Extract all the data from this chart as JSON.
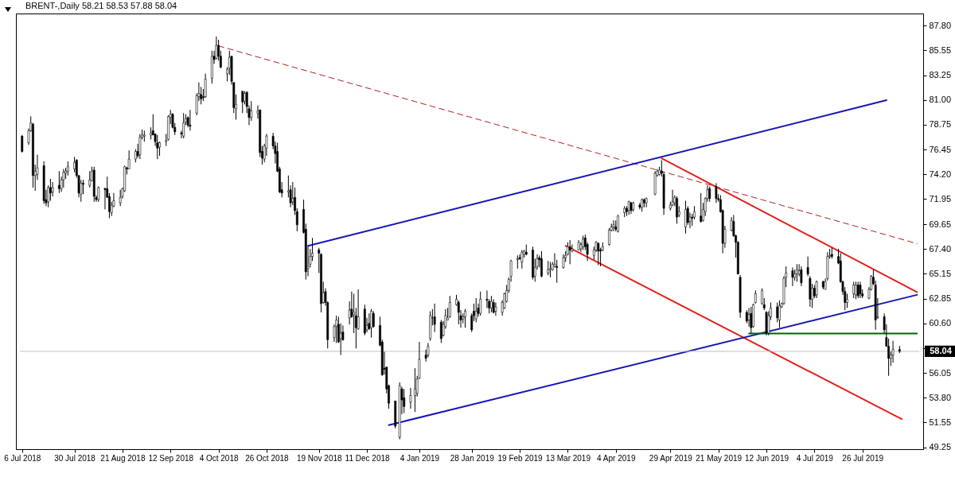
{
  "chart_data": {
    "type": "candlestick",
    "title": "BRENT-,Daily  58.21 58.53 57.88 58.04",
    "x": [
      "2018-07-06",
      "2018-07-09",
      "2018-07-10",
      "2018-07-11",
      "2018-07-12",
      "2018-07-13",
      "2018-07-16",
      "2018-07-17",
      "2018-07-18",
      "2018-07-19",
      "2018-07-20",
      "2018-07-23",
      "2018-07-24",
      "2018-07-25",
      "2018-07-26",
      "2018-07-27",
      "2018-07-30",
      "2018-07-31",
      "2018-08-01",
      "2018-08-02",
      "2018-08-03",
      "2018-08-06",
      "2018-08-07",
      "2018-08-08",
      "2018-08-09",
      "2018-08-10",
      "2018-08-13",
      "2018-08-14",
      "2018-08-15",
      "2018-08-16",
      "2018-08-17",
      "2018-08-20",
      "2018-08-21",
      "2018-08-22",
      "2018-08-23",
      "2018-08-24",
      "2018-08-27",
      "2018-08-28",
      "2018-08-29",
      "2018-08-30",
      "2018-08-31",
      "2018-09-03",
      "2018-09-04",
      "2018-09-05",
      "2018-09-06",
      "2018-09-07",
      "2018-09-10",
      "2018-09-11",
      "2018-09-12",
      "2018-09-13",
      "2018-09-14",
      "2018-09-17",
      "2018-09-18",
      "2018-09-19",
      "2018-09-20",
      "2018-09-21",
      "2018-09-24",
      "2018-09-25",
      "2018-09-26",
      "2018-09-27",
      "2018-09-28",
      "2018-10-01",
      "2018-10-02",
      "2018-10-03",
      "2018-10-04",
      "2018-10-05",
      "2018-10-08",
      "2018-10-09",
      "2018-10-10",
      "2018-10-11",
      "2018-10-12",
      "2018-10-15",
      "2018-10-16",
      "2018-10-17",
      "2018-10-18",
      "2018-10-19",
      "2018-10-22",
      "2018-10-23",
      "2018-10-24",
      "2018-10-25",
      "2018-10-26",
      "2018-10-29",
      "2018-10-30",
      "2018-10-31",
      "2018-11-01",
      "2018-11-02",
      "2018-11-05",
      "2018-11-06",
      "2018-11-07",
      "2018-11-08",
      "2018-11-09",
      "2018-11-12",
      "2018-11-13",
      "2018-11-14",
      "2018-11-15",
      "2018-11-16",
      "2018-11-19",
      "2018-11-20",
      "2018-11-21",
      "2018-11-22",
      "2018-11-23",
      "2018-11-26",
      "2018-11-27",
      "2018-11-28",
      "2018-11-29",
      "2018-11-30",
      "2018-12-03",
      "2018-12-04",
      "2018-12-05",
      "2018-12-06",
      "2018-12-07",
      "2018-12-10",
      "2018-12-11",
      "2018-12-12",
      "2018-12-13",
      "2018-12-14",
      "2018-12-17",
      "2018-12-18",
      "2018-12-19",
      "2018-12-20",
      "2018-12-21",
      "2018-12-24",
      "2018-12-26",
      "2018-12-27",
      "2018-12-28",
      "2018-12-31",
      "2019-01-02",
      "2019-01-03",
      "2019-01-04",
      "2019-01-07",
      "2019-01-08",
      "2019-01-09",
      "2019-01-10",
      "2019-01-11",
      "2019-01-14",
      "2019-01-15",
      "2019-01-16",
      "2019-01-17",
      "2019-01-18",
      "2019-01-21",
      "2019-01-22",
      "2019-01-23",
      "2019-01-24",
      "2019-01-25",
      "2019-01-28",
      "2019-01-29",
      "2019-01-30",
      "2019-01-31",
      "2019-02-01",
      "2019-02-04",
      "2019-02-05",
      "2019-02-06",
      "2019-02-07",
      "2019-02-08",
      "2019-02-11",
      "2019-02-12",
      "2019-02-13",
      "2019-02-14",
      "2019-02-15",
      "2019-02-18",
      "2019-02-19",
      "2019-02-20",
      "2019-02-21",
      "2019-02-22",
      "2019-02-25",
      "2019-02-26",
      "2019-02-27",
      "2019-02-28",
      "2019-03-01",
      "2019-03-04",
      "2019-03-05",
      "2019-03-06",
      "2019-03-07",
      "2019-03-08",
      "2019-03-11",
      "2019-03-12",
      "2019-03-13",
      "2019-03-14",
      "2019-03-15",
      "2019-03-18",
      "2019-03-19",
      "2019-03-20",
      "2019-03-21",
      "2019-03-22",
      "2019-03-25",
      "2019-03-26",
      "2019-03-27",
      "2019-03-28",
      "2019-03-29",
      "2019-04-01",
      "2019-04-02",
      "2019-04-03",
      "2019-04-04",
      "2019-04-05",
      "2019-04-08",
      "2019-04-09",
      "2019-04-10",
      "2019-04-11",
      "2019-04-12",
      "2019-04-15",
      "2019-04-16",
      "2019-04-17",
      "2019-04-18",
      "2019-04-22",
      "2019-04-23",
      "2019-04-24",
      "2019-04-25",
      "2019-04-26",
      "2019-04-29",
      "2019-04-30",
      "2019-05-01",
      "2019-05-02",
      "2019-05-03",
      "2019-05-06",
      "2019-05-07",
      "2019-05-08",
      "2019-05-09",
      "2019-05-10",
      "2019-05-13",
      "2019-05-14",
      "2019-05-15",
      "2019-05-16",
      "2019-05-17",
      "2019-05-20",
      "2019-05-21",
      "2019-05-22",
      "2019-05-23",
      "2019-05-24",
      "2019-05-27",
      "2019-05-28",
      "2019-05-29",
      "2019-05-30",
      "2019-05-31",
      "2019-06-03",
      "2019-06-04",
      "2019-06-05",
      "2019-06-06",
      "2019-06-07",
      "2019-06-10",
      "2019-06-11",
      "2019-06-12",
      "2019-06-13",
      "2019-06-14",
      "2019-06-17",
      "2019-06-18",
      "2019-06-19",
      "2019-06-20",
      "2019-06-21",
      "2019-06-24",
      "2019-06-25",
      "2019-06-26",
      "2019-06-27",
      "2019-06-28",
      "2019-07-01",
      "2019-07-02",
      "2019-07-03",
      "2019-07-04",
      "2019-07-05",
      "2019-07-08",
      "2019-07-09",
      "2019-07-10",
      "2019-07-11",
      "2019-07-12",
      "2019-07-15",
      "2019-07-16",
      "2019-07-17",
      "2019-07-18",
      "2019-07-19",
      "2019-07-22",
      "2019-07-23",
      "2019-07-24",
      "2019-07-25",
      "2019-07-26",
      "2019-07-29",
      "2019-07-30",
      "2019-07-31",
      "2019-08-01",
      "2019-08-02",
      "2019-08-05",
      "2019-08-06",
      "2019-08-07",
      "2019-08-08",
      "2019-08-09",
      "2019-08-12"
    ],
    "ohlc": [
      [
        77.7,
        77.8,
        76.2,
        76.3
      ],
      [
        77.1,
        78.4,
        76.9,
        78.2
      ],
      [
        78.2,
        79.5,
        78.1,
        78.9
      ],
      [
        78.8,
        78.9,
        73.0,
        74.1
      ],
      [
        74.1,
        75.1,
        72.7,
        74.5
      ],
      [
        74.2,
        76.0,
        73.7,
        74.8
      ],
      [
        75.0,
        75.4,
        71.5,
        71.8
      ],
      [
        71.9,
        72.8,
        71.3,
        71.6
      ],
      [
        71.7,
        73.2,
        71.2,
        73.0
      ],
      [
        73.0,
        73.8,
        71.8,
        72.5
      ],
      [
        72.6,
        73.5,
        72.2,
        73.0
      ],
      [
        73.2,
        74.5,
        72.5,
        72.9
      ],
      [
        72.9,
        74.0,
        72.6,
        73.7
      ],
      [
        73.7,
        74.7,
        73.0,
        74.4
      ],
      [
        74.3,
        74.8,
        73.8,
        74.5
      ],
      [
        74.5,
        75.4,
        74.1,
        74.9
      ],
      [
        74.7,
        75.8,
        74.4,
        75.3
      ],
      [
        75.5,
        75.6,
        73.9,
        74.1
      ],
      [
        74.1,
        74.1,
        72.1,
        72.5
      ],
      [
        72.4,
        73.7,
        71.7,
        73.4
      ],
      [
        73.4,
        73.7,
        72.4,
        73.3
      ],
      [
        73.2,
        74.5,
        73.0,
        73.7
      ],
      [
        73.6,
        74.9,
        73.6,
        74.5
      ],
      [
        74.6,
        74.9,
        71.7,
        72.2
      ],
      [
        72.1,
        72.3,
        71.7,
        71.9
      ],
      [
        71.9,
        73.1,
        71.7,
        73.0
      ],
      [
        72.9,
        73.0,
        71.0,
        72.8
      ],
      [
        72.9,
        74.0,
        72.1,
        72.1
      ],
      [
        72.2,
        72.5,
        70.2,
        70.8
      ],
      [
        70.7,
        71.7,
        70.4,
        71.4
      ],
      [
        71.3,
        72.5,
        71.2,
        71.8
      ],
      [
        71.6,
        72.8,
        71.3,
        72.1
      ],
      [
        72.2,
        73.0,
        72.0,
        72.9
      ],
      [
        72.7,
        75.0,
        72.6,
        74.9
      ],
      [
        74.8,
        74.9,
        74.2,
        74.7
      ],
      [
        74.7,
        76.4,
        74.7,
        75.6
      ],
      [
        75.6,
        76.5,
        75.3,
        76.3
      ],
      [
        76.3,
        77.0,
        75.7,
        75.9
      ],
      [
        76.0,
        77.9,
        75.6,
        77.6
      ],
      [
        77.6,
        78.3,
        77.4,
        77.8
      ],
      [
        77.7,
        78.2,
        77.2,
        77.8
      ],
      [
        77.8,
        78.5,
        77.4,
        78.0
      ],
      [
        78.2,
        79.7,
        77.8,
        77.8
      ],
      [
        77.9,
        77.9,
        76.8,
        77.2
      ],
      [
        77.1,
        77.8,
        75.6,
        76.6
      ],
      [
        76.7,
        77.2,
        75.9,
        77.1
      ],
      [
        77.2,
        77.9,
        76.8,
        77.3
      ],
      [
        77.4,
        79.6,
        77.3,
        79.5
      ],
      [
        79.4,
        80.1,
        78.8,
        79.7
      ],
      [
        79.7,
        79.8,
        78.4,
        78.5
      ],
      [
        78.5,
        78.9,
        77.8,
        78.1
      ],
      [
        78.0,
        78.2,
        77.5,
        77.9
      ],
      [
        77.7,
        79.8,
        77.5,
        78.9
      ],
      [
        79.0,
        79.7,
        78.7,
        79.3
      ],
      [
        79.4,
        79.5,
        78.5,
        78.7
      ],
      [
        78.7,
        80.1,
        78.2,
        78.6
      ],
      [
        79.8,
        81.6,
        79.6,
        81.4
      ],
      [
        81.3,
        82.6,
        80.9,
        81.6
      ],
      [
        81.5,
        82.2,
        80.6,
        81.1
      ],
      [
        81.3,
        82.0,
        80.9,
        81.2
      ],
      [
        81.3,
        83.4,
        81.2,
        82.9
      ],
      [
        83.0,
        85.5,
        82.5,
        85.0
      ],
      [
        85.0,
        85.5,
        84.3,
        84.7
      ],
      [
        84.8,
        86.8,
        84.7,
        86.0
      ],
      [
        86.0,
        86.5,
        84.6,
        85.0
      ],
      [
        85.0,
        85.5,
        83.9,
        84.0
      ],
      [
        83.4,
        84.0,
        82.7,
        83.8
      ],
      [
        83.9,
        85.5,
        83.3,
        84.9
      ],
      [
        85.0,
        85.0,
        82.4,
        82.7
      ],
      [
        82.6,
        82.6,
        79.8,
        80.3
      ],
      [
        80.2,
        81.5,
        79.2,
        80.6
      ],
      [
        81.8,
        81.8,
        79.8,
        80.8
      ],
      [
        80.9,
        81.8,
        80.6,
        81.6
      ],
      [
        81.7,
        81.8,
        79.8,
        80.4
      ],
      [
        80.2,
        80.5,
        78.7,
        79.4
      ],
      [
        79.4,
        80.9,
        79.1,
        80.0
      ],
      [
        79.8,
        80.5,
        79.3,
        80.0
      ],
      [
        80.1,
        80.1,
        75.8,
        76.2
      ],
      [
        76.3,
        76.8,
        75.1,
        75.7
      ],
      [
        75.6,
        77.0,
        75.3,
        76.8
      ],
      [
        76.6,
        77.9,
        75.9,
        77.7
      ],
      [
        77.7,
        78.0,
        76.5,
        76.8
      ],
      [
        76.8,
        77.2,
        75.2,
        76.1
      ],
      [
        76.3,
        77.1,
        74.4,
        74.5
      ],
      [
        74.7,
        74.9,
        72.5,
        72.6
      ],
      [
        72.8,
        73.5,
        72.1,
        72.5
      ],
      [
        72.6,
        74.1,
        72.1,
        72.7
      ],
      [
        72.8,
        73.2,
        71.2,
        71.6
      ],
      [
        71.7,
        73.5,
        71.4,
        72.0
      ],
      [
        72.1,
        73.0,
        70.5,
        70.9
      ],
      [
        70.8,
        71.1,
        69.0,
        69.6
      ],
      [
        71.0,
        71.9,
        68.8,
        68.9
      ],
      [
        69.2,
        69.7,
        64.6,
        65.3
      ],
      [
        65.6,
        67.6,
        64.9,
        65.8
      ],
      [
        66.0,
        67.4,
        65.7,
        66.7
      ],
      [
        66.7,
        68.4,
        66.3,
        67.0
      ],
      [
        67.3,
        67.5,
        65.2,
        67.0
      ],
      [
        66.9,
        67.0,
        61.6,
        62.4
      ],
      [
        62.5,
        64.4,
        62.4,
        63.4
      ],
      [
        63.5,
        63.8,
        62.2,
        62.5
      ],
      [
        62.5,
        62.6,
        58.3,
        59.1
      ],
      [
        59.3,
        60.5,
        58.9,
        60.3
      ],
      [
        60.3,
        61.3,
        58.8,
        60.9
      ],
      [
        60.5,
        61.2,
        58.8,
        58.9
      ],
      [
        59.2,
        60.6,
        57.7,
        59.7
      ],
      [
        59.8,
        60.4,
        59.0,
        59.1
      ],
      [
        61.1,
        62.6,
        60.5,
        61.8
      ],
      [
        61.9,
        63.5,
        61.1,
        61.2
      ],
      [
        61.4,
        63.3,
        59.7,
        61.6
      ],
      [
        61.3,
        62.0,
        58.3,
        60.2
      ],
      [
        60.1,
        63.7,
        60.0,
        61.2
      ],
      [
        61.9,
        62.3,
        59.5,
        59.7
      ],
      [
        60.0,
        61.1,
        59.8,
        60.4
      ],
      [
        60.6,
        61.5,
        60.0,
        60.1
      ],
      [
        60.2,
        61.9,
        59.3,
        61.7
      ],
      [
        61.5,
        61.7,
        60.2,
        60.3
      ],
      [
        60.4,
        61.2,
        58.5,
        58.6
      ],
      [
        58.9,
        59.1,
        55.8,
        55.9
      ],
      [
        56.5,
        58.0,
        55.9,
        56.4
      ],
      [
        56.6,
        56.6,
        54.2,
        54.6
      ],
      [
        54.9,
        55.0,
        52.8,
        53.3
      ],
      [
        53.5,
        53.5,
        51.0,
        51.2
      ],
      [
        50.2,
        55.2,
        50.0,
        54.9
      ],
      [
        54.6,
        54.8,
        52.3,
        53.6
      ],
      [
        53.8,
        54.6,
        52.4,
        53.0
      ],
      [
        53.4,
        54.7,
        52.8,
        54.0
      ],
      [
        54.0,
        56.5,
        52.5,
        54.6
      ],
      [
        54.2,
        55.8,
        53.9,
        55.5
      ],
      [
        55.6,
        58.9,
        55.5,
        57.3
      ],
      [
        57.7,
        58.2,
        57.1,
        57.4
      ],
      [
        57.7,
        58.8,
        57.5,
        58.5
      ],
      [
        59.2,
        61.7,
        59.0,
        61.3
      ],
      [
        61.1,
        61.9,
        60.4,
        61.1
      ],
      [
        61.2,
        62.4,
        59.8,
        60.5
      ],
      [
        60.7,
        60.9,
        58.8,
        59.2
      ],
      [
        59.5,
        60.8,
        59.4,
        60.5
      ],
      [
        60.3,
        61.9,
        60.1,
        61.3
      ],
      [
        60.9,
        62.0,
        60.9,
        61.1
      ],
      [
        61.2,
        63.1,
        61.1,
        62.5
      ],
      [
        62.3,
        63.2,
        62.2,
        62.8
      ],
      [
        62.5,
        62.7,
        60.5,
        61.6
      ],
      [
        61.3,
        61.8,
        60.2,
        60.9
      ],
      [
        61.0,
        61.5,
        60.6,
        61.2
      ],
      [
        61.2,
        61.9,
        60.2,
        61.7
      ],
      [
        61.3,
        61.5,
        59.8,
        60.0
      ],
      [
        61.7,
        62.4,
        60.8,
        61.3
      ],
      [
        61.0,
        62.9,
        60.7,
        61.7
      ],
      [
        62.0,
        62.4,
        61.2,
        61.5
      ],
      [
        61.5,
        63.5,
        61.3,
        62.8
      ],
      [
        62.8,
        63.6,
        62.0,
        62.7
      ],
      [
        62.6,
        62.8,
        61.5,
        62.0
      ],
      [
        62.0,
        63.1,
        61.6,
        62.6
      ],
      [
        62.5,
        62.8,
        61.5,
        61.6
      ],
      [
        61.7,
        62.5,
        61.3,
        62.1
      ],
      [
        61.6,
        62.7,
        61.3,
        62.5
      ],
      [
        62.0,
        63.4,
        61.9,
        63.3
      ],
      [
        62.6,
        64.1,
        62.5,
        63.6
      ],
      [
        63.6,
        64.8,
        63.4,
        64.6
      ],
      [
        64.9,
        66.4,
        64.4,
        66.3
      ],
      [
        66.4,
        66.8,
        65.6,
        66.5
      ],
      [
        66.6,
        66.9,
        66.4,
        66.5
      ],
      [
        66.2,
        67.3,
        65.6,
        67.1
      ],
      [
        66.9,
        67.3,
        66.6,
        67.2
      ],
      [
        67.1,
        67.8,
        66.8,
        66.9
      ],
      [
        67.3,
        67.6,
        64.6,
        64.8
      ],
      [
        64.9,
        66.5,
        64.4,
        65.7
      ],
      [
        65.8,
        66.9,
        65.5,
        66.5
      ],
      [
        66.6,
        66.8,
        65.7,
        66.4
      ],
      [
        66.5,
        67.2,
        64.8,
        64.9
      ],
      [
        65.2,
        66.3,
        65.0,
        65.5
      ],
      [
        65.5,
        66.2,
        64.8,
        65.6
      ],
      [
        65.5,
        66.2,
        65.4,
        66.0
      ],
      [
        65.8,
        67.0,
        65.7,
        66.0
      ],
      [
        65.8,
        66.4,
        64.3,
        65.7
      ],
      [
        65.7,
        66.9,
        65.6,
        66.6
      ],
      [
        66.6,
        67.2,
        66.2,
        66.8
      ],
      [
        66.9,
        68.0,
        66.8,
        67.6
      ],
      [
        67.6,
        68.2,
        66.0,
        67.3
      ],
      [
        67.2,
        67.8,
        67.1,
        67.4
      ],
      [
        67.3,
        68.2,
        67.3,
        68.0
      ],
      [
        67.4,
        68.0,
        67.1,
        67.8
      ],
      [
        67.6,
        68.6,
        67.3,
        68.3
      ],
      [
        68.4,
        68.7,
        67.3,
        67.6
      ],
      [
        67.8,
        68.0,
        66.3,
        66.9
      ],
      [
        66.8,
        67.6,
        66.4,
        67.3
      ],
      [
        67.3,
        68.1,
        67.1,
        68.0
      ],
      [
        67.9,
        68.0,
        65.9,
        67.2
      ],
      [
        67.3,
        67.5,
        65.8,
        67.2
      ],
      [
        67.3,
        68.0,
        67.2,
        67.6
      ],
      [
        67.8,
        69.3,
        67.7,
        69.1
      ],
      [
        69.1,
        69.7,
        69.0,
        69.4
      ],
      [
        69.4,
        70.0,
        69.0,
        69.6
      ],
      [
        69.4,
        70.0,
        69.0,
        69.2
      ],
      [
        69.0,
        70.5,
        68.9,
        70.4
      ],
      [
        70.7,
        71.3,
        70.3,
        71.1
      ],
      [
        71.1,
        71.3,
        70.4,
        70.8
      ],
      [
        70.9,
        71.8,
        70.5,
        71.7
      ],
      [
        71.6,
        71.7,
        70.6,
        70.9
      ],
      [
        71.0,
        71.7,
        70.8,
        71.6
      ],
      [
        71.4,
        71.6,
        71.0,
        71.2
      ],
      [
        71.2,
        72.0,
        70.8,
        71.9
      ],
      [
        71.9,
        72.0,
        71.2,
        71.6
      ],
      [
        71.6,
        72.1,
        71.2,
        72.0
      ],
      [
        72.4,
        74.5,
        72.3,
        74.3
      ],
      [
        74.1,
        74.7,
        74.0,
        74.5
      ],
      [
        74.2,
        74.9,
        74.1,
        74.6
      ],
      [
        74.5,
        75.5,
        74.0,
        74.3
      ],
      [
        74.2,
        74.4,
        70.5,
        71.1
      ],
      [
        71.1,
        71.7,
        70.9,
        71.4
      ],
      [
        71.4,
        72.8,
        71.3,
        71.7
      ],
      [
        71.6,
        72.3,
        71.3,
        72.1
      ],
      [
        72.0,
        72.2,
        69.7,
        70.3
      ],
      [
        70.5,
        71.3,
        70.3,
        70.8
      ],
      [
        69.4,
        71.8,
        68.8,
        71.0
      ],
      [
        71.1,
        71.3,
        69.6,
        69.8
      ],
      [
        69.9,
        70.7,
        69.3,
        70.3
      ],
      [
        70.3,
        70.6,
        69.5,
        70.2
      ],
      [
        70.3,
        71.3,
        70.1,
        70.8
      ],
      [
        70.4,
        72.5,
        69.8,
        69.9
      ],
      [
        70.0,
        71.6,
        69.9,
        71.0
      ],
      [
        70.8,
        72.1,
        70.4,
        72.0
      ],
      [
        72.0,
        73.2,
        71.7,
        72.8
      ],
      [
        72.9,
        73.1,
        71.7,
        72.0
      ],
      [
        73.1,
        73.4,
        71.6,
        72.0
      ],
      [
        72.0,
        72.4,
        71.7,
        71.9
      ],
      [
        71.9,
        72.3,
        70.7,
        70.8
      ],
      [
        70.9,
        71.0,
        67.0,
        67.9
      ],
      [
        67.9,
        69.5,
        67.5,
        69.2
      ],
      [
        69.1,
        70.3,
        69.0,
        70.0
      ],
      [
        69.9,
        70.5,
        68.5,
        68.6
      ],
      [
        68.6,
        68.7,
        66.6,
        68.0
      ],
      [
        68.0,
        68.1,
        65.1,
        65.1
      ],
      [
        64.8,
        65.0,
        61.1,
        61.6
      ],
      [
        61.6,
        61.8,
        60.6,
        60.8
      ],
      [
        60.9,
        62.0,
        60.3,
        61.4
      ],
      [
        61.5,
        62.1,
        59.7,
        60.2
      ],
      [
        60.3,
        62.4,
        60.2,
        62.3
      ],
      [
        62.5,
        63.6,
        62.4,
        63.3
      ],
      [
        62.4,
        63.8,
        62.3,
        63.6
      ],
      [
        62.3,
        62.9,
        61.8,
        62.0
      ],
      [
        61.6,
        61.7,
        59.5,
        59.7
      ],
      [
        59.7,
        61.7,
        59.5,
        61.3
      ],
      [
        61.2,
        62.5,
        60.9,
        62.0
      ],
      [
        62.1,
        62.5,
        60.7,
        61.1
      ],
      [
        60.9,
        62.7,
        60.2,
        62.2
      ],
      [
        62.1,
        62.5,
        62.0,
        62.4
      ],
      [
        62.4,
        64.9,
        62.3,
        64.7
      ],
      [
        64.8,
        65.8,
        63.9,
        65.2
      ],
      [
        65.4,
        65.7,
        64.0,
        64.8
      ],
      [
        64.8,
        65.5,
        64.5,
        65.1
      ],
      [
        65.1,
        66.0,
        64.4,
        65.5
      ],
      [
        65.1,
        66.0,
        64.9,
        65.4
      ],
      [
        65.5,
        65.8,
        64.0,
        64.3
      ],
      [
        65.7,
        66.7,
        64.9,
        65.1
      ],
      [
        64.7,
        64.9,
        62.1,
        62.8
      ],
      [
        62.8,
        64.2,
        62.0,
        63.8
      ],
      [
        63.8,
        64.1,
        62.9,
        63.1
      ],
      [
        63.2,
        64.5,
        62.9,
        64.4
      ],
      [
        64.4,
        64.5,
        63.7,
        63.9
      ],
      [
        63.7,
        64.7,
        63.7,
        64.4
      ],
      [
        64.7,
        67.1,
        64.5,
        66.7
      ],
      [
        66.7,
        67.4,
        66.5,
        66.8
      ],
      [
        66.9,
        67.5,
        66.5,
        66.7
      ],
      [
        66.7,
        67.4,
        66.0,
        66.1
      ],
      [
        66.3,
        67.0,
        64.3,
        64.4
      ],
      [
        64.4,
        64.5,
        63.2,
        63.5
      ],
      [
        63.5,
        63.9,
        61.8,
        62.5
      ],
      [
        62.5,
        63.3,
        62.0,
        62.8
      ],
      [
        63.3,
        64.4,
        62.9,
        64.1
      ],
      [
        63.2,
        64.4,
        62.8,
        64.1
      ],
      [
        64.1,
        64.4,
        62.9,
        63.1
      ],
      [
        64.1,
        64.4,
        62.9,
        63.3
      ],
      [
        63.3,
        63.7,
        62.9,
        63.1
      ],
      [
        62.9,
        63.9,
        62.8,
        63.7
      ],
      [
        63.7,
        65.0,
        63.6,
        64.9
      ],
      [
        64.8,
        65.5,
        64.1,
        64.2
      ],
      [
        64.1,
        64.5,
        60.0,
        60.9
      ],
      [
        61.1,
        62.9,
        61.0,
        61.2
      ],
      [
        61.2,
        61.5,
        59.7,
        60.0
      ],
      [
        59.3,
        60.5,
        58.5,
        58.5
      ],
      [
        58.5,
        59.2,
        55.8,
        57.4
      ],
      [
        57.4,
        58.0,
        56.7,
        57.7
      ],
      [
        57.7,
        59.0,
        57.0,
        58.2
      ],
      [
        58.21,
        58.53,
        57.88,
        58.04
      ]
    ],
    "series": [
      {
        "type": "line",
        "x": [
          "2019-03-12",
          "2019-08-13"
        ],
        "values": [
          67.68,
          51.85
        ],
        "color": "#e3201c",
        "line_style": "solid"
      },
      {
        "type": "line",
        "x": [
          "2018-10-04",
          "2019-08-20"
        ],
        "values": [
          85.94,
          67.88
        ],
        "color": "#b22222",
        "line_style": "dashed"
      },
      {
        "type": "line",
        "x": [
          "2018-11-14",
          "2019-08-06"
        ],
        "values": [
          67.68,
          80.98
        ],
        "color": "#1616b0",
        "line_style": "solid"
      },
      {
        "type": "line",
        "x": [
          "2018-12-21",
          "2019-08-20"
        ],
        "values": [
          51.3,
          63.2
        ],
        "color": "#1616b0",
        "line_style": "solid"
      },
      {
        "type": "line",
        "x": [
          "2019-04-25",
          "2019-08-20"
        ],
        "values": [
          75.67,
          63.45
        ],
        "color": "#e3201c",
        "line_style": "solid"
      },
      {
        "type": "line",
        "x": [
          "2019-06-04",
          "2019-08-20"
        ],
        "values": [
          59.66,
          59.66
        ],
        "color": "#006400",
        "line_style": "solid"
      }
    ],
    "ref_lines": [
      {
        "axis": "y",
        "value": 58.04,
        "label": "58.04",
        "color": "#c0c0c0",
        "line_style": "solid"
      }
    ],
    "xlim": [
      "2018-07-06",
      "2019-08-20"
    ],
    "xticks": [
      {
        "value": "2018-07-06",
        "label": "6 Jul 2018"
      },
      {
        "value": "2018-07-30",
        "label": "30 Jul 2018"
      },
      {
        "value": "2018-08-21",
        "label": "21 Aug 2018"
      },
      {
        "value": "2018-09-12",
        "label": "12 Sep 2018"
      },
      {
        "value": "2018-10-04",
        "label": "4 Oct 2018"
      },
      {
        "value": "2018-10-26",
        "label": "26 Oct 2018"
      },
      {
        "value": "2018-11-19",
        "label": "19 Nov 2018"
      },
      {
        "value": "2018-12-11",
        "label": "11 Dec 2018"
      },
      {
        "value": "2019-01-04",
        "label": "4 Jan 2019"
      },
      {
        "value": "2019-01-28",
        "label": "28 Jan 2019"
      },
      {
        "value": "2019-02-19",
        "label": "19 Feb 2019"
      },
      {
        "value": "2019-03-13",
        "label": "13 Mar 2019"
      },
      {
        "value": "2019-04-04",
        "label": "4 Apr 2019"
      },
      {
        "value": "2019-04-29",
        "label": "29 Apr 2019"
      },
      {
        "value": "2019-05-21",
        "label": "21 May 2019"
      },
      {
        "value": "2019-06-12",
        "label": "12 Jun 2019"
      },
      {
        "value": "2019-07-04",
        "label": "4 Jul 2019"
      },
      {
        "value": "2019-07-26",
        "label": "26 Jul 2019"
      }
    ],
    "ylim": [
      49.1,
      88.9
    ],
    "yticks": [
      {
        "value": 87.8,
        "label": "87.80"
      },
      {
        "value": 85.55,
        "label": "85.55"
      },
      {
        "value": 83.25,
        "label": "83.25"
      },
      {
        "value": 81,
        "label": "81.00"
      },
      {
        "value": 78.75,
        "label": "78.75"
      },
      {
        "value": 76.45,
        "label": "76.45"
      },
      {
        "value": 74.2,
        "label": "74.20"
      },
      {
        "value": 71.95,
        "label": "71.95"
      },
      {
        "value": 69.65,
        "label": "69.65"
      },
      {
        "value": 67.4,
        "label": "67.40"
      },
      {
        "value": 65.15,
        "label": "65.15"
      },
      {
        "value": 62.85,
        "label": "62.85"
      },
      {
        "value": 60.6,
        "label": "60.60"
      },
      {
        "value": 58.35,
        "label": null
      },
      {
        "value": 56.05,
        "label": "56.05"
      },
      {
        "value": 53.8,
        "label": "53.80"
      },
      {
        "value": 51.55,
        "label": "51.55"
      },
      {
        "value": 49.25,
        "label": "49.25"
      }
    ]
  }
}
